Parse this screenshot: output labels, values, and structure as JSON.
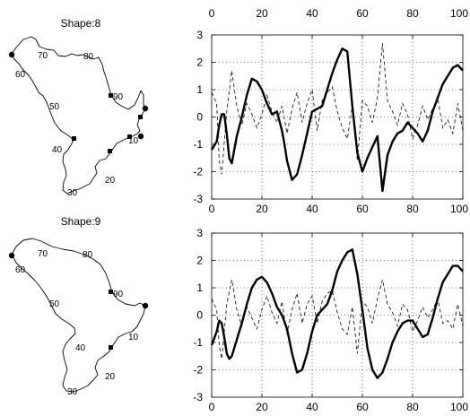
{
  "shapes": [
    {
      "title": "Shape:8",
      "labels": [
        "10",
        "20",
        "30",
        "40",
        "50",
        "60",
        "70",
        "80",
        "90"
      ],
      "dots": 3,
      "squares": 5
    },
    {
      "title": "Shape:9",
      "labels": [
        "10",
        "20",
        "30",
        "40",
        "50",
        "60",
        "70",
        "80",
        "90"
      ],
      "dots": 2,
      "squares": 2
    }
  ],
  "top_axis": {
    "ticks": [
      "0",
      "20",
      "40",
      "60",
      "80",
      "100"
    ]
  },
  "chart_data": [
    {
      "type": "line",
      "xlim": [
        0,
        100
      ],
      "ylim": [
        -3,
        3
      ],
      "grid": true,
      "xticks": [
        "0",
        "20",
        "40",
        "60",
        "80",
        "100"
      ],
      "yticks": [
        "3",
        "2",
        "1",
        "0",
        "-1",
        "-2",
        "-3"
      ],
      "series": [
        {
          "style": "solid-thick",
          "x": [
            0,
            2,
            3,
            4,
            5,
            6,
            7,
            8,
            10,
            12,
            14,
            16,
            18,
            20,
            22,
            24,
            26,
            28,
            29,
            30,
            32,
            34,
            36,
            38,
            40,
            42,
            44,
            46,
            48,
            50,
            52,
            54,
            56,
            58,
            60,
            62,
            64,
            66,
            68,
            70,
            72,
            74,
            76,
            78,
            80,
            82,
            84,
            86,
            88,
            90,
            92,
            94,
            96,
            98,
            100
          ],
          "y": [
            -1.2,
            -0.9,
            -0.3,
            0.1,
            0.1,
            -0.6,
            -1.5,
            -1.7,
            -0.7,
            0.0,
            0.8,
            1.4,
            1.3,
            1.0,
            0.5,
            0.1,
            0.2,
            -0.5,
            -1.0,
            -1.6,
            -2.3,
            -2.1,
            -1.4,
            -0.6,
            0.2,
            0.3,
            0.4,
            1.0,
            1.6,
            2.1,
            2.5,
            2.4,
            0.4,
            -1.3,
            -2.0,
            -1.5,
            -1.1,
            -0.7,
            -2.7,
            -1.4,
            -0.9,
            -0.6,
            -0.5,
            -0.2,
            -0.4,
            -0.6,
            -0.9,
            -0.5,
            0.2,
            0.7,
            1.2,
            1.5,
            1.8,
            1.9,
            1.7
          ]
        },
        {
          "style": "dashed-thin",
          "x": [
            0,
            2,
            3,
            4,
            6,
            8,
            10,
            12,
            14,
            16,
            18,
            20,
            22,
            24,
            26,
            28,
            30,
            32,
            34,
            36,
            38,
            40,
            42,
            44,
            46,
            48,
            50,
            52,
            54,
            56,
            58,
            60,
            62,
            64,
            66,
            68,
            70,
            72,
            74,
            76,
            78,
            80,
            82,
            84,
            86,
            88,
            90,
            92,
            94,
            96,
            98,
            100
          ],
          "y": [
            0.9,
            0.5,
            -1.6,
            -2.1,
            0.2,
            1.7,
            0.4,
            -0.3,
            0.5,
            0.1,
            -0.4,
            0.1,
            0.8,
            0.2,
            -0.2,
            0.4,
            -0.6,
            0.3,
            0.9,
            -0.2,
            0.5,
            1.0,
            -0.5,
            0.6,
            0.9,
            1.1,
            0.2,
            -0.4,
            -0.8,
            0.4,
            -1.6,
            0.6,
            0.4,
            -0.2,
            0.7,
            2.7,
            0.6,
            0.2,
            -0.3,
            0.5,
            0.1,
            -0.8,
            -0.3,
            0.4,
            -0.1,
            0.3,
            0.7,
            -0.4,
            -0.1,
            -0.6,
            0.5,
            -0.5
          ]
        }
      ]
    },
    {
      "type": "line",
      "xlim": [
        0,
        100
      ],
      "ylim": [
        -3,
        3
      ],
      "grid": true,
      "xticks": [
        "0",
        "20",
        "40",
        "60",
        "80",
        "100"
      ],
      "yticks": [
        "3",
        "2",
        "1",
        "0",
        "-1",
        "-2",
        "-3"
      ],
      "series": [
        {
          "style": "solid-thick",
          "x": [
            0,
            2,
            3,
            4,
            5,
            6,
            7,
            8,
            10,
            12,
            14,
            16,
            18,
            20,
            22,
            24,
            26,
            28,
            30,
            32,
            34,
            36,
            38,
            40,
            42,
            44,
            46,
            48,
            50,
            52,
            54,
            56,
            58,
            60,
            62,
            64,
            66,
            68,
            70,
            72,
            74,
            76,
            78,
            80,
            82,
            84,
            86,
            88,
            90,
            92,
            94,
            96,
            98,
            100
          ],
          "y": [
            -1.1,
            -0.6,
            -0.2,
            -0.3,
            -0.8,
            -1.4,
            -1.6,
            -1.5,
            -0.9,
            -0.3,
            0.4,
            1.0,
            1.3,
            1.4,
            1.2,
            0.8,
            0.3,
            0.0,
            -0.5,
            -1.4,
            -2.1,
            -2.0,
            -1.4,
            -0.6,
            0.0,
            0.2,
            0.4,
            0.9,
            1.6,
            2.0,
            2.3,
            2.4,
            1.5,
            0.2,
            -1.2,
            -2.0,
            -2.3,
            -2.1,
            -1.6,
            -1.0,
            -0.6,
            -0.3,
            -0.2,
            -0.2,
            -0.5,
            -0.8,
            -0.7,
            -0.1,
            0.6,
            1.2,
            1.5,
            1.8,
            1.8,
            1.6
          ]
        },
        {
          "style": "dashed-thin",
          "x": [
            0,
            2,
            3,
            4,
            6,
            8,
            10,
            12,
            14,
            16,
            18,
            20,
            22,
            24,
            26,
            28,
            30,
            32,
            34,
            36,
            38,
            40,
            42,
            44,
            46,
            48,
            50,
            52,
            54,
            56,
            58,
            60,
            62,
            64,
            66,
            68,
            70,
            72,
            74,
            76,
            78,
            80,
            82,
            84,
            86,
            88,
            90,
            92,
            94,
            96,
            98,
            100
          ],
          "y": [
            0.6,
            0.2,
            -1.1,
            -1.6,
            0.4,
            1.3,
            0.2,
            -0.4,
            0.3,
            -0.1,
            -0.5,
            0.2,
            0.7,
            0.1,
            -0.3,
            0.5,
            -0.7,
            0.2,
            0.8,
            -0.3,
            0.4,
            0.7,
            -0.3,
            0.5,
            0.8,
            0.9,
            0.1,
            -0.5,
            -0.7,
            0.3,
            -1.4,
            0.5,
            0.3,
            -0.3,
            0.6,
            1.3,
            0.4,
            0.1,
            -0.4,
            0.4,
            0.2,
            -0.6,
            -0.2,
            0.3,
            -0.1,
            0.2,
            0.6,
            -0.3,
            -0.2,
            -0.5,
            0.4,
            -0.4
          ]
        }
      ]
    }
  ]
}
